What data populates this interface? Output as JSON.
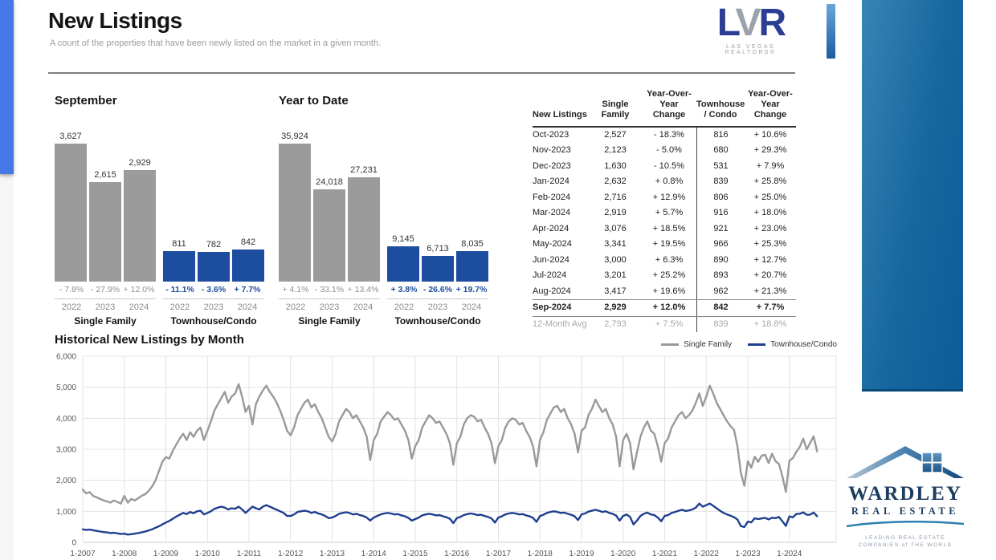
{
  "page": {
    "title": "New Listings",
    "subtitle": "A count of the properties that have been newly listed on the market in a given month."
  },
  "lvr_logo": {
    "letters": [
      "L",
      "V",
      "R"
    ],
    "letter_colors": [
      "#2b3e94",
      "#9aa2ac",
      "#2b3e94"
    ],
    "tagline": "LAS VEGAS REALTORS®"
  },
  "colors": {
    "bar_gray": "#9b9b9b",
    "bar_blue": "#1d4d9f",
    "pct_gray": "#8f8f8f",
    "line_gray": "#999999",
    "line_blue": "#1e3f8f",
    "left_bar_blue": "#4577e6",
    "right_panel_blue": "#16669f"
  },
  "table": {
    "headers": [
      "New Listings",
      "Single\nFamily",
      "Year-Over-Year\nChange",
      "Townhouse\n/ Condo",
      "Year-Over-Year\nChange"
    ],
    "rows": [
      {
        "month": "Oct-2023",
        "sf": "2,527",
        "sf_yoy": "- 18.3%",
        "tc": "816",
        "tc_yoy": "+ 10.6%",
        "bold": false
      },
      {
        "month": "Nov-2023",
        "sf": "2,123",
        "sf_yoy": "- 5.0%",
        "tc": "680",
        "tc_yoy": "+ 29.3%",
        "bold": false
      },
      {
        "month": "Dec-2023",
        "sf": "1,630",
        "sf_yoy": "- 10.5%",
        "tc": "531",
        "tc_yoy": "+ 7.9%",
        "bold": false
      },
      {
        "month": "Jan-2024",
        "sf": "2,632",
        "sf_yoy": "+ 0.8%",
        "tc": "839",
        "tc_yoy": "+ 25.8%",
        "bold": false
      },
      {
        "month": "Feb-2024",
        "sf": "2,716",
        "sf_yoy": "+ 12.9%",
        "tc": "806",
        "tc_yoy": "+ 25.0%",
        "bold": false
      },
      {
        "month": "Mar-2024",
        "sf": "2,919",
        "sf_yoy": "+ 5.7%",
        "tc": "916",
        "tc_yoy": "+ 18.0%",
        "bold": false
      },
      {
        "month": "Apr-2024",
        "sf": "3,076",
        "sf_yoy": "+ 18.5%",
        "tc": "921",
        "tc_yoy": "+ 23.0%",
        "bold": false
      },
      {
        "month": "May-2024",
        "sf": "3,341",
        "sf_yoy": "+ 19.5%",
        "tc": "966",
        "tc_yoy": "+ 25.3%",
        "bold": false
      },
      {
        "month": "Jun-2024",
        "sf": "3,000",
        "sf_yoy": "+ 6.3%",
        "tc": "890",
        "tc_yoy": "+ 12.7%",
        "bold": false
      },
      {
        "month": "Jul-2024",
        "sf": "3,201",
        "sf_yoy": "+ 25.2%",
        "tc": "893",
        "tc_yoy": "+ 20.7%",
        "bold": false
      },
      {
        "month": "Aug-2024",
        "sf": "3,417",
        "sf_yoy": "+ 19.6%",
        "tc": "962",
        "tc_yoy": "+ 21.3%",
        "bold": false
      },
      {
        "month": "Sep-2024",
        "sf": "2,929",
        "sf_yoy": "+ 12.0%",
        "tc": "842",
        "tc_yoy": "+ 7.7%",
        "bold": true
      }
    ],
    "footer": {
      "month": "12-Month Avg",
      "sf": "2,793",
      "sf_yoy": "+ 7.5%",
      "tc": "839",
      "tc_yoy": "+ 18.8%"
    }
  },
  "chart_data": [
    {
      "id": "september",
      "type": "bar",
      "title": "September",
      "categories": [
        "2022",
        "2023",
        "2024"
      ],
      "groups": [
        {
          "label": "Single Family",
          "color": "#9b9b9b",
          "pct_color": "#8f8f8f",
          "pct_bold": false,
          "values": [
            3627,
            2615,
            2929
          ],
          "value_labels": [
            "3,627",
            "2,615",
            "2,929"
          ],
          "pct_labels": [
            "- 7.8%",
            "- 27.9%",
            "+ 12.0%"
          ]
        },
        {
          "label": "Townhouse/Condo",
          "color": "#1d4d9f",
          "pct_color": "#1d4d9f",
          "pct_bold": true,
          "values": [
            811,
            782,
            842
          ],
          "value_labels": [
            "811",
            "782",
            "842"
          ],
          "pct_labels": [
            "- 11.1%",
            "- 3.6%",
            "+ 7.7%"
          ]
        }
      ]
    },
    {
      "id": "ytd",
      "type": "bar",
      "title": "Year to Date",
      "categories": [
        "2022",
        "2023",
        "2024"
      ],
      "groups": [
        {
          "label": "Single Family",
          "color": "#9b9b9b",
          "pct_color": "#8f8f8f",
          "pct_bold": false,
          "values": [
            35924,
            24018,
            27231
          ],
          "value_labels": [
            "35,924",
            "24,018",
            "27,231"
          ],
          "pct_labels": [
            "+ 4.1%",
            "- 33.1%",
            "+ 13.4%"
          ]
        },
        {
          "label": "Townhouse/Condo",
          "color": "#1d4d9f",
          "pct_color": "#1d4d9f",
          "pct_bold": true,
          "values": [
            9145,
            6713,
            8035
          ],
          "value_labels": [
            "9,145",
            "6,713",
            "8,035"
          ],
          "pct_labels": [
            "+ 3.8%",
            "- 26.6%",
            "+ 19.7%"
          ]
        }
      ]
    },
    {
      "id": "history",
      "type": "line",
      "title": "Historical New Listings by Month",
      "x_start": "2007-01",
      "x_end": "2024-09",
      "x_tick_labels": [
        "1-2007",
        "1-2008",
        "1-2009",
        "1-2010",
        "1-2011",
        "1-2012",
        "1-2013",
        "1-2014",
        "1-2015",
        "1-2016",
        "1-2017",
        "1-2018",
        "1-2019",
        "1-2020",
        "1-2021",
        "1-2022",
        "1-2023",
        "1-2024"
      ],
      "ylim": [
        0,
        6000
      ],
      "y_tick_values": [
        0,
        1000,
        2000,
        3000,
        4000,
        5000,
        6000
      ],
      "y_tick_labels": [
        "0",
        "1,000",
        "2,000",
        "3,000",
        "4,000",
        "5,000",
        "6,000"
      ],
      "grid": true,
      "legend_position": "top-right",
      "series": [
        {
          "name": "Single Family",
          "color": "#999999",
          "values": [
            1700,
            1580,
            1620,
            1500,
            1450,
            1400,
            1350,
            1320,
            1280,
            1350,
            1300,
            1250,
            1500,
            1280,
            1400,
            1350,
            1420,
            1500,
            1550,
            1650,
            1800,
            2000,
            2300,
            2600,
            2750,
            2700,
            2950,
            3150,
            3350,
            3500,
            3300,
            3550,
            3400,
            3600,
            3700,
            3300,
            3600,
            3900,
            4250,
            4450,
            4650,
            4850,
            4500,
            4700,
            4800,
            5100,
            4700,
            4200,
            4400,
            3800,
            4450,
            4700,
            4900,
            5050,
            4850,
            4700,
            4500,
            4250,
            3950,
            3600,
            3450,
            3700,
            4100,
            4300,
            4500,
            4600,
            4350,
            4450,
            4200,
            4000,
            3700,
            3400,
            3250,
            3500,
            3900,
            4100,
            4300,
            4200,
            4000,
            4100,
            3900,
            3700,
            3400,
            2650,
            3300,
            3500,
            3900,
            4050,
            4200,
            4100,
            3950,
            4000,
            3800,
            3600,
            3300,
            2700,
            3100,
            3300,
            3700,
            3900,
            4100,
            4000,
            3850,
            3900,
            3700,
            3500,
            3200,
            2500,
            3200,
            3400,
            3800,
            4000,
            4100,
            4050,
            3900,
            3950,
            3700,
            3500,
            3200,
            2550,
            3100,
            3300,
            3700,
            3900,
            4000,
            3950,
            3800,
            3850,
            3600,
            3400,
            3100,
            2450,
            3300,
            3550,
            3950,
            4150,
            4350,
            4400,
            4200,
            4300,
            4000,
            3800,
            3500,
            2900,
            3600,
            3700,
            4100,
            4300,
            4600,
            4400,
            4200,
            4300,
            4000,
            3800,
            3400,
            2450,
            3300,
            3500,
            3200,
            2350,
            2900,
            3400,
            3700,
            3900,
            3600,
            3500,
            3100,
            2600,
            3200,
            3350,
            3700,
            3900,
            4100,
            4200,
            4000,
            4100,
            4250,
            4500,
            4800,
            4400,
            4700,
            5050,
            4800,
            4500,
            4300,
            4100,
            3900,
            3750,
            3627,
            3093,
            2235,
            1821,
            2611,
            2406,
            2762,
            2596,
            2796,
            2822,
            2557,
            2857,
            2615,
            2527,
            2123,
            1630,
            2632,
            2716,
            2919,
            3076,
            3341,
            3000,
            3201,
            3417,
            2929
          ]
        },
        {
          "name": "Townhouse/Condo",
          "color": "#1e3f8f",
          "values": [
            420,
            400,
            410,
            390,
            370,
            350,
            330,
            320,
            300,
            310,
            290,
            270,
            280,
            250,
            265,
            280,
            300,
            320,
            350,
            380,
            420,
            470,
            520,
            580,
            640,
            690,
            760,
            830,
            890,
            950,
            910,
            980,
            940,
            1000,
            1020,
            900,
            950,
            1000,
            1080,
            1120,
            1150,
            1120,
            1060,
            1100,
            1080,
            1150,
            1060,
            950,
            1050,
            1150,
            1100,
            1060,
            1150,
            1200,
            1150,
            1100,
            1050,
            1000,
            950,
            850,
            850,
            900,
            980,
            1000,
            1020,
            1000,
            950,
            980,
            930,
            900,
            850,
            780,
            800,
            850,
            920,
            950,
            970,
            950,
            900,
            920,
            880,
            850,
            800,
            700,
            800,
            850,
            900,
            930,
            950,
            930,
            900,
            910,
            870,
            840,
            790,
            700,
            750,
            800,
            870,
            900,
            920,
            900,
            870,
            880,
            840,
            810,
            760,
            620,
            780,
            820,
            880,
            910,
            930,
            910,
            880,
            890,
            850,
            820,
            770,
            640,
            800,
            840,
            900,
            930,
            950,
            930,
            900,
            910,
            870,
            840,
            790,
            660,
            850,
            890,
            950,
            980,
            1000,
            980,
            950,
            960,
            920,
            890,
            840,
            720,
            900,
            930,
            990,
            1020,
            1050,
            1020,
            980,
            1000,
            950,
            920,
            860,
            700,
            850,
            900,
            820,
            580,
            700,
            850,
            920,
            960,
            900,
            880,
            800,
            680,
            850,
            880,
            950,
            980,
            1020,
            1050,
            1010,
            1030,
            1060,
            1120,
            1250,
            1150,
            1200,
            1250,
            1180,
            1100,
            1020,
            950,
            900,
            860,
            811,
            738,
            526,
            492,
            667,
            645,
            776,
            749,
            771,
            790,
            740,
            793,
            782,
            816,
            680,
            531,
            839,
            806,
            916,
            921,
            966,
            890,
            893,
            962,
            842
          ]
        }
      ]
    }
  ],
  "wardley_logo": {
    "name": "WARDLEY",
    "sub": "REAL ESTATE",
    "tagline1": "LEADING REAL ESTATE",
    "tagline2": "COMPANIES of THE WORLD"
  }
}
